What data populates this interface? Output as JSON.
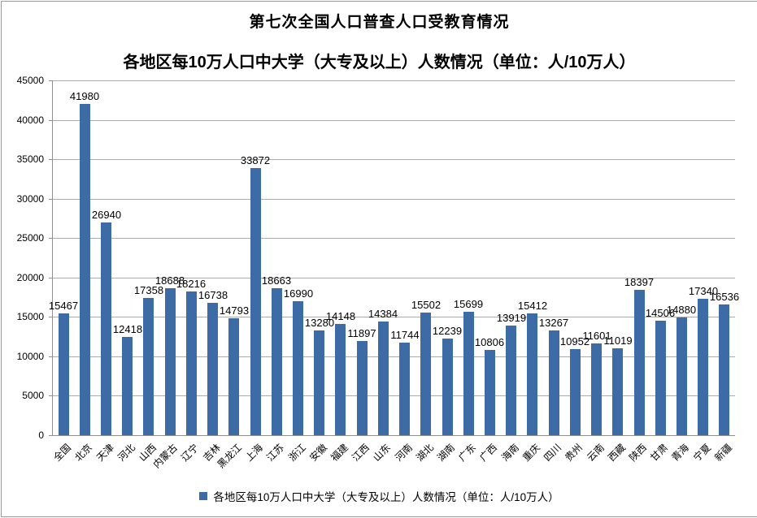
{
  "title": "第七次全国人口普查人口受教育情况",
  "subtitle": "各地区每10万人口中大学（大专及以上）人数情况（单位：人/10万人）",
  "legend": {
    "marker": "square-icon",
    "marker_color": "#3c6ba5",
    "label": "各地区每10万人口中大学（大专及以上）人数情况（单位：人/10万人）",
    "position": "bottom"
  },
  "colors": {
    "bar": "#3c6ba5",
    "gridline": "#ababab",
    "axis": "#8f8f8f",
    "frame_border": "#999999",
    "background": "#ffffff",
    "text": "#000000"
  },
  "chart_data": {
    "type": "bar",
    "title": "第七次全国人口普查人口受教育情况",
    "subtitle": "各地区每10万人口中大学（大专及以上）人数情况（单位：人/10万人）",
    "series_name": "各地区每10万人口中大学（大专及以上）人数情况（单位：人/10万人）",
    "categories": [
      "全国",
      "北京",
      "天津",
      "河北",
      "山西",
      "内蒙古",
      "辽宁",
      "吉林",
      "黑龙江",
      "上海",
      "江苏",
      "浙江",
      "安徽",
      "福建",
      "江西",
      "山东",
      "河南",
      "湖北",
      "湖南",
      "广东",
      "广西",
      "海南",
      "重庆",
      "四川",
      "贵州",
      "云南",
      "西藏",
      "陕西",
      "甘肃",
      "青海",
      "宁夏",
      "新疆"
    ],
    "values": [
      15467,
      41980,
      26940,
      12418,
      17358,
      18688,
      18216,
      16738,
      14793,
      33872,
      18663,
      16990,
      13280,
      14148,
      11897,
      14384,
      11744,
      15502,
      12239,
      15699,
      10806,
      13919,
      15412,
      13267,
      10952,
      11601,
      11019,
      18397,
      14506,
      14880,
      17340,
      16536
    ],
    "ylim": [
      0,
      45000
    ],
    "ytick_step": 5000,
    "yticks": [
      0,
      5000,
      10000,
      15000,
      20000,
      25000,
      30000,
      35000,
      40000,
      45000
    ],
    "grid": true,
    "data_labels": "outside-end",
    "xlabel_rotation": 45,
    "legend_position": "bottom"
  }
}
